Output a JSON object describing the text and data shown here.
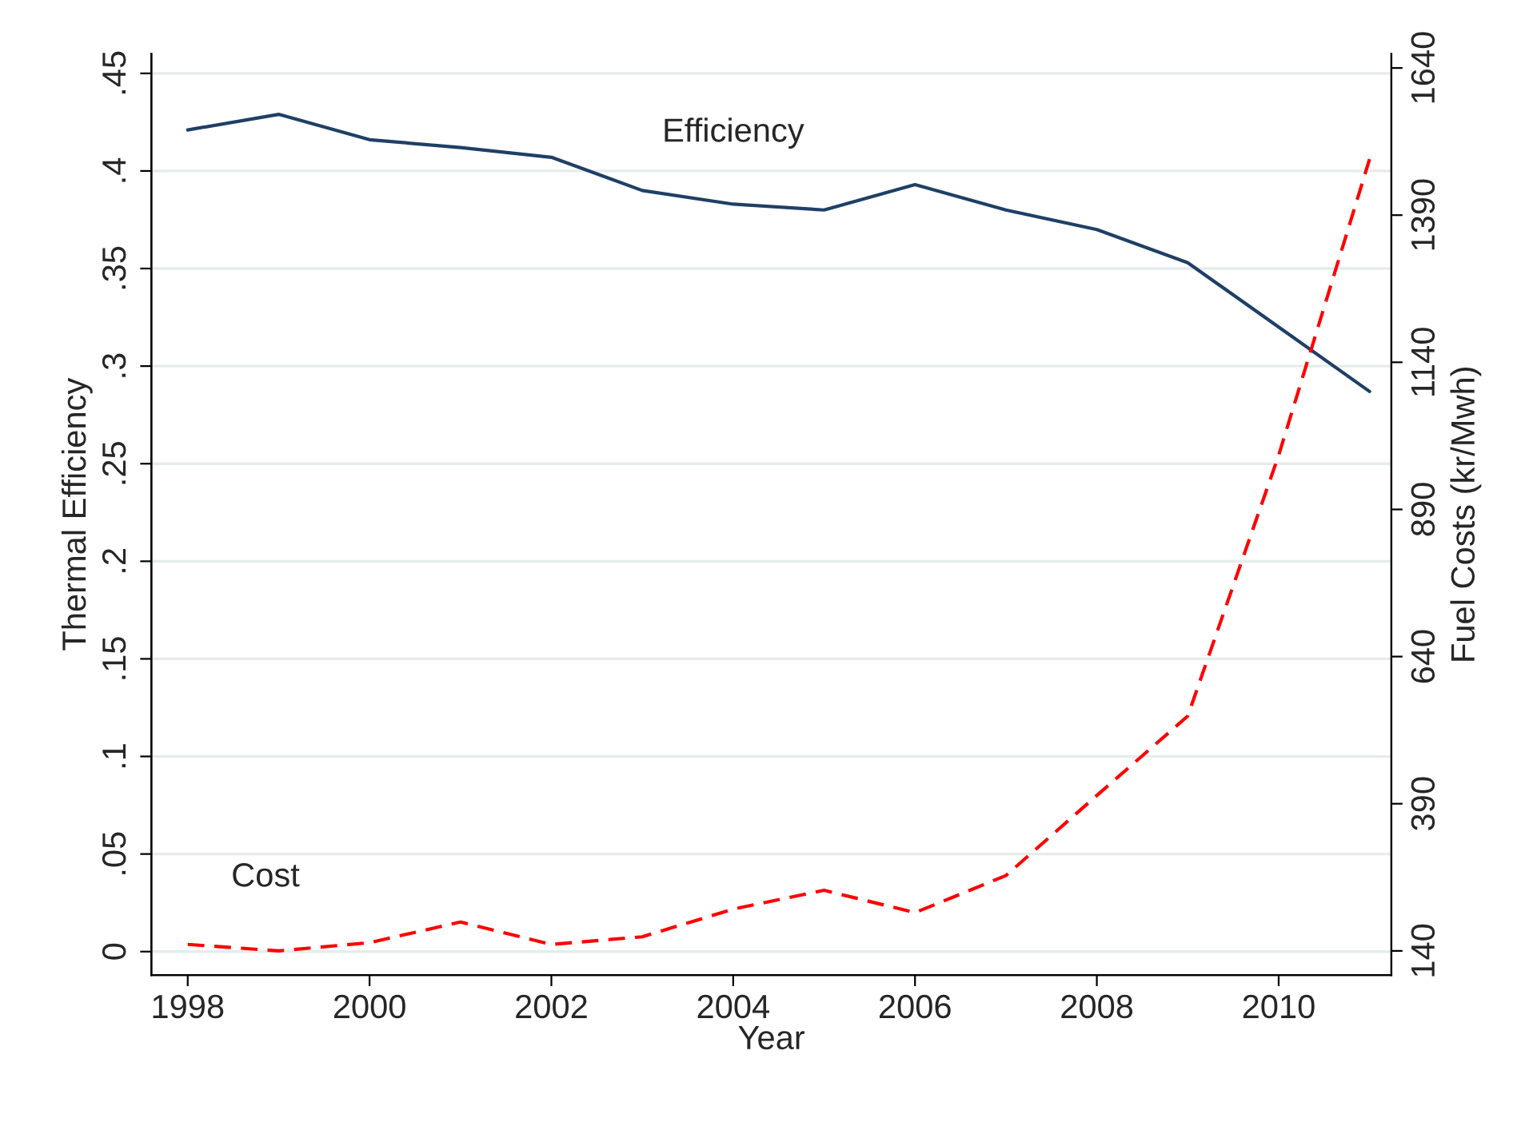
{
  "chart_data": {
    "type": "line",
    "xlabel": "Year",
    "ylabel": "Thermal Efficiency",
    "y2label": "Fuel Costs (kr/Mwh)",
    "x": [
      1998,
      1999,
      2000,
      2001,
      2002,
      2003,
      2004,
      2005,
      2006,
      2007,
      2008,
      2009,
      2010,
      2011
    ],
    "series": [
      {
        "name": "Efficiency",
        "color": "#1f3f66",
        "line_style": "solid",
        "values": [
          0.421,
          0.429,
          0.416,
          0.412,
          0.407,
          0.39,
          0.383,
          0.38,
          0.393,
          0.38,
          0.37,
          0.353,
          0.32,
          0.287
        ]
      },
      {
        "name": "Cost",
        "color": "#ff0000",
        "line_style": "dashed",
        "axis": "y2",
        "values": [
          151,
          140,
          154,
          189,
          151,
          164,
          211,
          243,
          205,
          268,
          404,
          539,
          982,
          1485
        ]
      }
    ],
    "xlim": [
      1997.6,
      2011.24
    ],
    "xticks": [
      1998,
      2000,
      2002,
      2004,
      2006,
      2008,
      2010
    ],
    "ylim": [
      -0.012,
      0.46
    ],
    "yticks": [
      {
        "value": 0,
        "label": "0"
      },
      {
        "value": 0.05,
        "label": ".05"
      },
      {
        "value": 0.1,
        "label": ".1"
      },
      {
        "value": 0.15,
        "label": ".15"
      },
      {
        "value": 0.2,
        "label": ".2"
      },
      {
        "value": 0.25,
        "label": ".25"
      },
      {
        "value": 0.3,
        "label": ".3"
      },
      {
        "value": 0.35,
        "label": ".35"
      },
      {
        "value": 0.4,
        "label": ".4"
      },
      {
        "value": 0.45,
        "label": ".45"
      }
    ],
    "y2lim": [
      99,
      1664
    ],
    "y2ticks": [
      140,
      390,
      640,
      890,
      1140,
      1390,
      1640
    ],
    "grid": "y",
    "legend": false
  }
}
